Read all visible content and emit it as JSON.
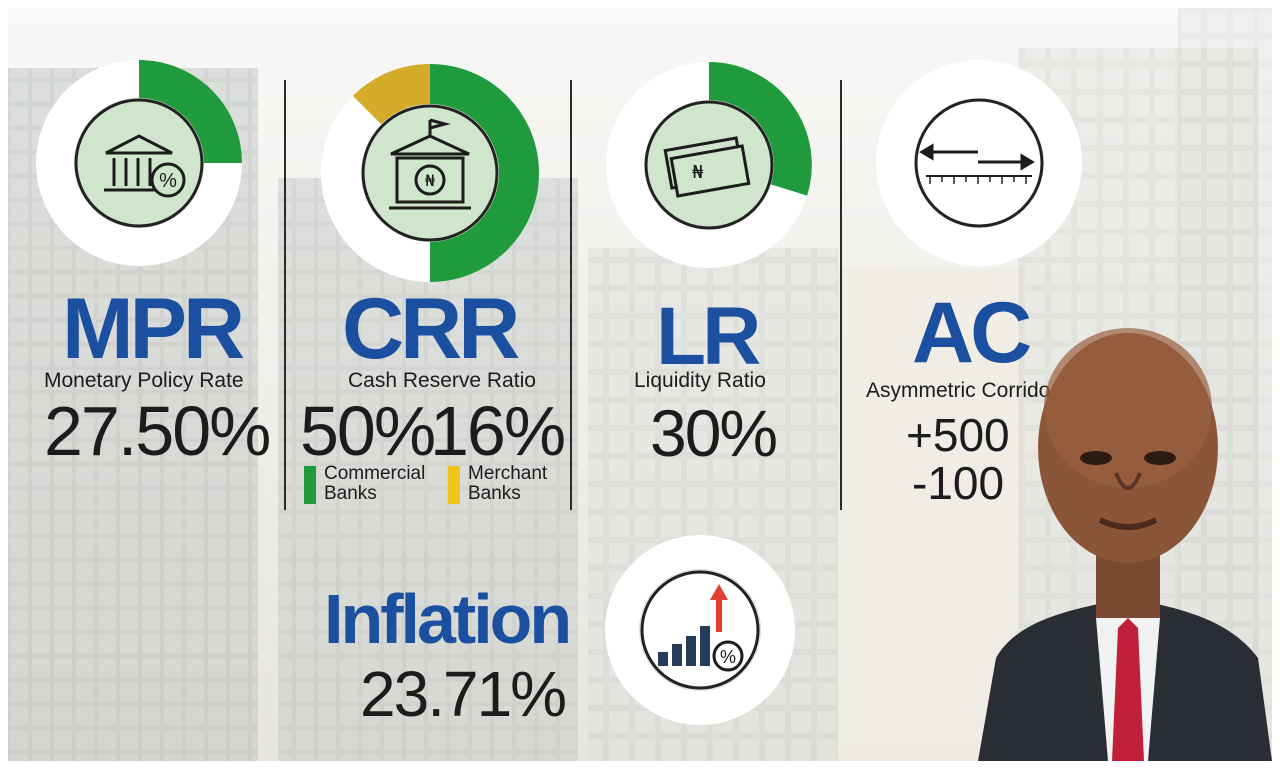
{
  "panels": [
    {
      "abbr": "MPR",
      "label": "Monetary Policy Rate",
      "value": "27.50%",
      "icon": "bank-percent-icon"
    },
    {
      "abbr": "CRR",
      "label": "Cash Reserve Ratio",
      "value_commercial": "50%",
      "value_merchant": "16%",
      "legend": [
        {
          "label": "Commercial Banks",
          "line1": "Commercial",
          "line2": "Banks",
          "color": "#1f9a3c"
        },
        {
          "label": "Merchant Banks",
          "line1": "Merchant",
          "line2": "Banks",
          "color": "#f0c419"
        }
      ],
      "icon": "central-bank-naira-icon"
    },
    {
      "abbr": "LR",
      "label": "Liquidity Ratio",
      "value": "30%",
      "icon": "naira-notes-icon"
    },
    {
      "abbr": "AC",
      "label": "Asymmetric Corridor",
      "value_upper": "+500",
      "value_lower": "-100",
      "icon": "corridor-ruler-icon"
    }
  ],
  "inflation": {
    "label": "Inflation",
    "value": "23.71%",
    "icon": "rising-bars-percent-icon"
  },
  "colors": {
    "title_blue": "#1b4fa0",
    "ring_green": "#1f9a3c",
    "ring_yellow": "#f0c419",
    "icon_fill": "#cfe6cd"
  }
}
